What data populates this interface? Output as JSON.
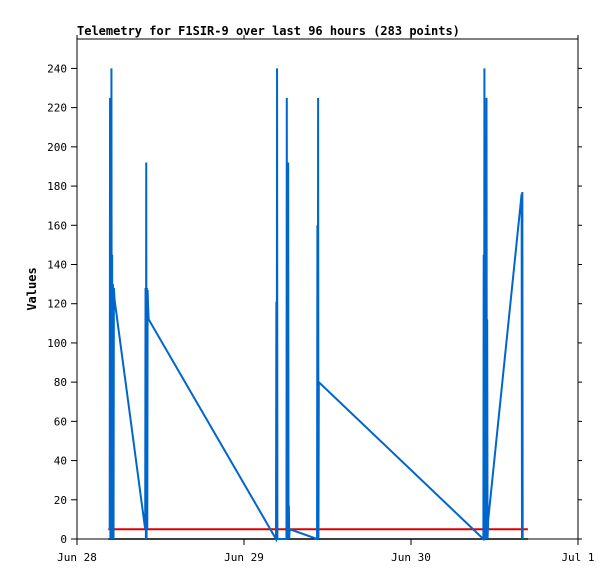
{
  "chart_data": {
    "type": "line",
    "title": "Telemetry for F1SIR-9 over last 96 hours (283 points)",
    "xlabel": "",
    "ylabel": "Values",
    "x_tick_labels": [
      "Jun 28",
      "Jun 29",
      "Jun 30",
      "Jul 1"
    ],
    "x_ticks_hours": [
      0,
      24,
      48,
      72
    ],
    "xlim_hours": [
      0,
      72
    ],
    "ylim": [
      0,
      255
    ],
    "y_ticks": [
      0,
      20,
      40,
      60,
      80,
      100,
      120,
      140,
      160,
      180,
      200,
      220,
      240
    ],
    "grid": false,
    "colors": {
      "series_main": "#0066cc",
      "series_red": "#dd0000",
      "series_base": "#000000"
    },
    "series": [
      {
        "key": "main",
        "x_hours": [
          4.7,
          4.75,
          4.8,
          4.85,
          4.9,
          4.95,
          5.0,
          5.05,
          5.1,
          5.15,
          5.2,
          5.25,
          5.3,
          5.35,
          5.4,
          9.8,
          9.85,
          9.9,
          9.95,
          10.0,
          10.05,
          10.1,
          10.15,
          10.2,
          10.3,
          28.6,
          28.65,
          28.7,
          28.75,
          28.8,
          30.1,
          30.15,
          30.2,
          30.25,
          30.3,
          30.35,
          30.4,
          30.45,
          30.5,
          30.55,
          34.5,
          34.55,
          34.6,
          34.65,
          34.7,
          34.75,
          58.4,
          58.45,
          58.5,
          58.55,
          58.6,
          58.65,
          58.7,
          58.75,
          58.8,
          58.85,
          58.9,
          58.95,
          59.0,
          59.05,
          59.1,
          63.9,
          63.95,
          64.0,
          64.05
        ],
        "values": [
          5,
          225,
          0,
          225,
          80,
          240,
          0,
          145,
          0,
          130,
          127,
          0,
          128,
          125,
          122,
          5,
          128,
          0,
          192,
          0,
          128,
          5,
          127,
          120,
          112,
          0,
          121,
          0,
          240,
          0,
          0,
          225,
          0,
          145,
          0,
          192,
          0,
          17,
          0,
          5,
          0,
          160,
          0,
          225,
          0,
          80,
          0,
          145,
          0,
          240,
          0,
          56,
          0,
          168,
          0,
          225,
          0,
          112,
          0,
          5,
          10,
          176,
          0,
          177,
          0
        ]
      },
      {
        "key": "red",
        "x_hours": [
          4.5,
          64.8
        ],
        "values": [
          5,
          5
        ]
      },
      {
        "key": "base",
        "x_hours": [
          4.5,
          64.8
        ],
        "values": [
          0,
          0
        ]
      }
    ]
  }
}
